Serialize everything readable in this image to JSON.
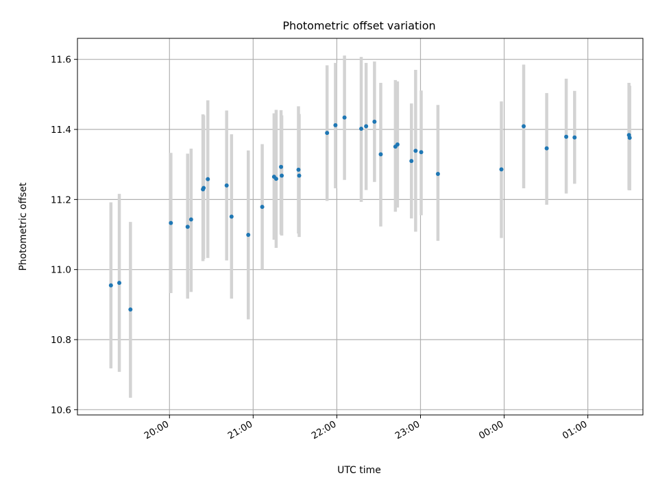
{
  "chart_data": {
    "type": "scatter",
    "title": "Photometric offset variation",
    "xlabel": "UTC time",
    "ylabel": "Photometric offset",
    "x_unit": "minutes relative to 19:00 UTC",
    "xlim": [
      -6.0,
      399.5
    ],
    "ylim": [
      10.585,
      11.66
    ],
    "grid": true,
    "x_ticks": [
      {
        "value": 60,
        "label": "20:00"
      },
      {
        "value": 120,
        "label": "21:00"
      },
      {
        "value": 180,
        "label": "22:00"
      },
      {
        "value": 240,
        "label": "23:00"
      },
      {
        "value": 300,
        "label": "00:00"
      },
      {
        "value": 360,
        "label": "01:00"
      }
    ],
    "y_ticks": [
      {
        "value": 10.6,
        "label": "10.6"
      },
      {
        "value": 10.8,
        "label": "10.8"
      },
      {
        "value": 11.0,
        "label": "11.0"
      },
      {
        "value": 11.2,
        "label": "11.2"
      },
      {
        "value": 11.4,
        "label": "11.4"
      },
      {
        "value": 11.6,
        "label": "11.6"
      }
    ],
    "colors": {
      "point": "#1f77b4",
      "errorbar": "#d3d3d3",
      "grid": "#b0b0b0",
      "axes": "#000000"
    },
    "series": [
      {
        "name": "offset",
        "points": [
          {
            "x": 18.0,
            "y": 10.955,
            "lo": 10.718,
            "hi": 11.192
          },
          {
            "x": 24.0,
            "y": 10.962,
            "lo": 10.708,
            "hi": 11.216
          },
          {
            "x": 32.0,
            "y": 10.886,
            "lo": 10.634,
            "hi": 11.136
          },
          {
            "x": 61.0,
            "y": 11.133,
            "lo": 10.933,
            "hi": 11.333
          },
          {
            "x": 73.0,
            "y": 11.122,
            "lo": 10.917,
            "hi": 11.331
          },
          {
            "x": 75.5,
            "y": 11.143,
            "lo": 10.936,
            "hi": 11.345
          },
          {
            "x": 84.0,
            "y": 11.229,
            "lo": 11.024,
            "hi": 11.443
          },
          {
            "x": 84.5,
            "y": 11.233,
            "lo": 11.03,
            "hi": 11.44
          },
          {
            "x": 87.5,
            "y": 11.258,
            "lo": 11.033,
            "hi": 11.483
          },
          {
            "x": 101.0,
            "y": 11.24,
            "lo": 11.026,
            "hi": 11.454
          },
          {
            "x": 104.5,
            "y": 11.151,
            "lo": 10.917,
            "hi": 11.386
          },
          {
            "x": 116.5,
            "y": 11.099,
            "lo": 10.858,
            "hi": 11.34
          },
          {
            "x": 126.5,
            "y": 11.179,
            "lo": 11.0,
            "hi": 11.358
          },
          {
            "x": 135.0,
            "y": 11.265,
            "lo": 11.085,
            "hi": 11.446
          },
          {
            "x": 136.5,
            "y": 11.259,
            "lo": 11.062,
            "hi": 11.456
          },
          {
            "x": 140.0,
            "y": 11.293,
            "lo": 11.1,
            "hi": 11.455
          },
          {
            "x": 140.5,
            "y": 11.268,
            "lo": 11.097,
            "hi": 11.44
          },
          {
            "x": 152.5,
            "y": 11.285,
            "lo": 11.103,
            "hi": 11.466
          },
          {
            "x": 153.0,
            "y": 11.268,
            "lo": 11.093,
            "hi": 11.444
          },
          {
            "x": 173.0,
            "y": 11.39,
            "lo": 11.196,
            "hi": 11.583
          },
          {
            "x": 179.0,
            "y": 11.412,
            "lo": 11.232,
            "hi": 11.59
          },
          {
            "x": 185.5,
            "y": 11.434,
            "lo": 11.256,
            "hi": 11.611
          },
          {
            "x": 197.5,
            "y": 11.402,
            "lo": 11.193,
            "hi": 11.607
          },
          {
            "x": 201.0,
            "y": 11.409,
            "lo": 11.227,
            "hi": 11.59
          },
          {
            "x": 207.0,
            "y": 11.422,
            "lo": 11.25,
            "hi": 11.594
          },
          {
            "x": 211.5,
            "y": 11.329,
            "lo": 11.123,
            "hi": 11.533
          },
          {
            "x": 222.0,
            "y": 11.351,
            "lo": 11.165,
            "hi": 11.541
          },
          {
            "x": 223.5,
            "y": 11.357,
            "lo": 11.177,
            "hi": 11.537
          },
          {
            "x": 233.5,
            "y": 11.31,
            "lo": 11.146,
            "hi": 11.474
          },
          {
            "x": 236.5,
            "y": 11.339,
            "lo": 11.108,
            "hi": 11.57
          },
          {
            "x": 240.5,
            "y": 11.335,
            "lo": 11.155,
            "hi": 11.511
          },
          {
            "x": 252.5,
            "y": 11.273,
            "lo": 11.082,
            "hi": 11.47
          },
          {
            "x": 298.0,
            "y": 11.286,
            "lo": 11.09,
            "hi": 11.48
          },
          {
            "x": 314.0,
            "y": 11.409,
            "lo": 11.232,
            "hi": 11.585
          },
          {
            "x": 330.5,
            "y": 11.346,
            "lo": 11.185,
            "hi": 11.504
          },
          {
            "x": 344.5,
            "y": 11.379,
            "lo": 11.217,
            "hi": 11.545
          },
          {
            "x": 350.5,
            "y": 11.377,
            "lo": 11.245,
            "hi": 11.51
          },
          {
            "x": 389.5,
            "y": 11.384,
            "lo": 11.227,
            "hi": 11.533
          },
          {
            "x": 390.0,
            "y": 11.376,
            "lo": 11.226,
            "hi": 11.525
          }
        ]
      }
    ]
  }
}
